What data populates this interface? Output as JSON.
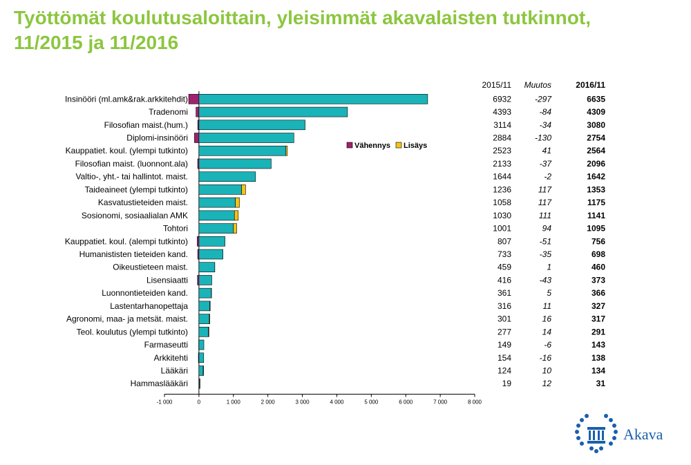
{
  "title": {
    "line1": "Työttömät koulutusaloittain, yleisimmät akavalaisten tutkinnot,",
    "line2": "11/2015 ja 11/2016"
  },
  "colors": {
    "base": "#1ab3b8",
    "decrease": "#a0226e",
    "increase": "#f2c318",
    "title": "#8cc63f",
    "brand": "#1a5fab"
  },
  "logo": {
    "text": "Akava",
    "icon": "laurel-column-icon"
  },
  "chart_data": {
    "type": "bar",
    "orientation": "horizontal",
    "title": "",
    "xlabel": "",
    "ylabel": "",
    "xlim": [
      -1000,
      8000
    ],
    "xticks": [
      -1000,
      0,
      1000,
      2000,
      3000,
      4000,
      5000,
      6000,
      7000,
      8000
    ],
    "xtick_labels": [
      "-1 000",
      "0",
      "1 000",
      "2 000",
      "3 000",
      "4 000",
      "5 000",
      "6 000",
      "7 000",
      "8 000"
    ],
    "legend": {
      "position": "top-right",
      "entries": [
        "Vähennys",
        "Lisäys"
      ]
    },
    "table_headers": [
      "2015/11",
      "Muutos",
      "2016/11"
    ],
    "categories": [
      "Insinööri (ml.amk&rak.arkkitehdit)",
      "Tradenomi",
      "Filosofian maist.(hum.)",
      "Diplomi-insinööri",
      "Kauppatiet. koul. (ylempi tutkinto)",
      "Filosofian maist. (luonnont.ala)",
      "Valtio-, yht.- tai hallintot. maist.",
      "Taideaineet (ylempi tutkinto)",
      "Kasvatustieteiden maist.",
      "Sosionomi, sosiaalialan AMK",
      "Tohtori",
      "Kauppatiet. koul. (alempi tutkinto)",
      "Humanististen tieteiden kand.",
      "Oikeustieteen maist.",
      "Lisensiaatti",
      "Luonnontieteiden kand.",
      "Lastentarhanopettaja",
      "Agronomi, maa- ja metsät. maist.",
      "Teol. koulutus (ylempi tutkinto)",
      "Farmaseutti",
      "Arkkitehti",
      "Lääkäri",
      "Hammaslääkäri"
    ],
    "series": [
      {
        "name": "2015/11",
        "values": [
          6932,
          4393,
          3114,
          2884,
          2523,
          2133,
          1644,
          1236,
          1058,
          1030,
          1001,
          807,
          733,
          459,
          416,
          361,
          316,
          301,
          277,
          149,
          154,
          124,
          19
        ]
      },
      {
        "name": "Muutos",
        "values": [
          -297,
          -84,
          -34,
          -130,
          41,
          -37,
          -2,
          117,
          117,
          111,
          94,
          -51,
          -35,
          1,
          -43,
          5,
          11,
          16,
          14,
          -6,
          -16,
          10,
          12
        ]
      },
      {
        "name": "2016/11",
        "values": [
          6635,
          4309,
          3080,
          2754,
          2564,
          2096,
          1642,
          1353,
          1175,
          1141,
          1095,
          756,
          698,
          460,
          373,
          366,
          327,
          317,
          291,
          143,
          138,
          134,
          31
        ]
      }
    ]
  }
}
